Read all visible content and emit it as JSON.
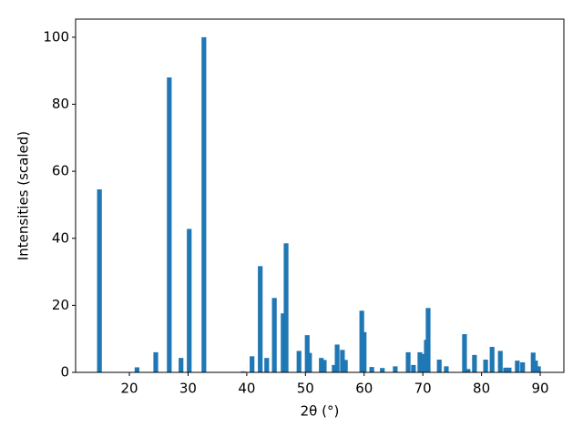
{
  "chart_data": {
    "type": "bar",
    "x_label": "2θ (°)",
    "y_label": "Intensities (scaled)",
    "x": [
      14.9,
      21.3,
      24.5,
      26.8,
      28.8,
      30.2,
      32.7,
      39.4,
      40.9,
      42.3,
      43.4,
      44.7,
      46.2,
      46.7,
      48.9,
      50.3,
      50.7,
      52.7,
      53.2,
      54.9,
      55.4,
      56.3,
      56.8,
      59.6,
      60.0,
      61.3,
      63.1,
      65.3,
      67.5,
      68.4,
      69.5,
      70.3,
      70.6,
      70.9,
      72.8,
      74.0,
      77.1,
      77.7,
      78.8,
      80.7,
      81.8,
      83.2,
      84.1,
      84.7,
      86.1,
      87.0,
      88.8,
      89.2,
      89.7
    ],
    "values": [
      54.6,
      1.5,
      6,
      88,
      4.3,
      42.8,
      100,
      0.3,
      4.8,
      31.7,
      4.3,
      22.2,
      17.6,
      38.5,
      6.4,
      11.1,
      5.8,
      4.3,
      3.7,
      2.2,
      8.3,
      6.7,
      3.7,
      18.4,
      12,
      1.6,
      1.3,
      1.8,
      6,
      2.2,
      6,
      5.5,
      9.7,
      19.2,
      3.8,
      1.8,
      11.4,
      1,
      5.2,
      3.8,
      7.6,
      6.4,
      1.4,
      1.4,
      3.5,
      3,
      5.9,
      3.5,
      1.8
    ],
    "color": "#1f77b4",
    "xlim": [
      10.84,
      94.03
    ],
    "ylim": [
      0,
      105.4
    ],
    "xticks": [
      20,
      30,
      40,
      50,
      60,
      70,
      80,
      90
    ],
    "yticks": [
      0,
      20,
      40,
      60,
      80,
      100
    ]
  }
}
